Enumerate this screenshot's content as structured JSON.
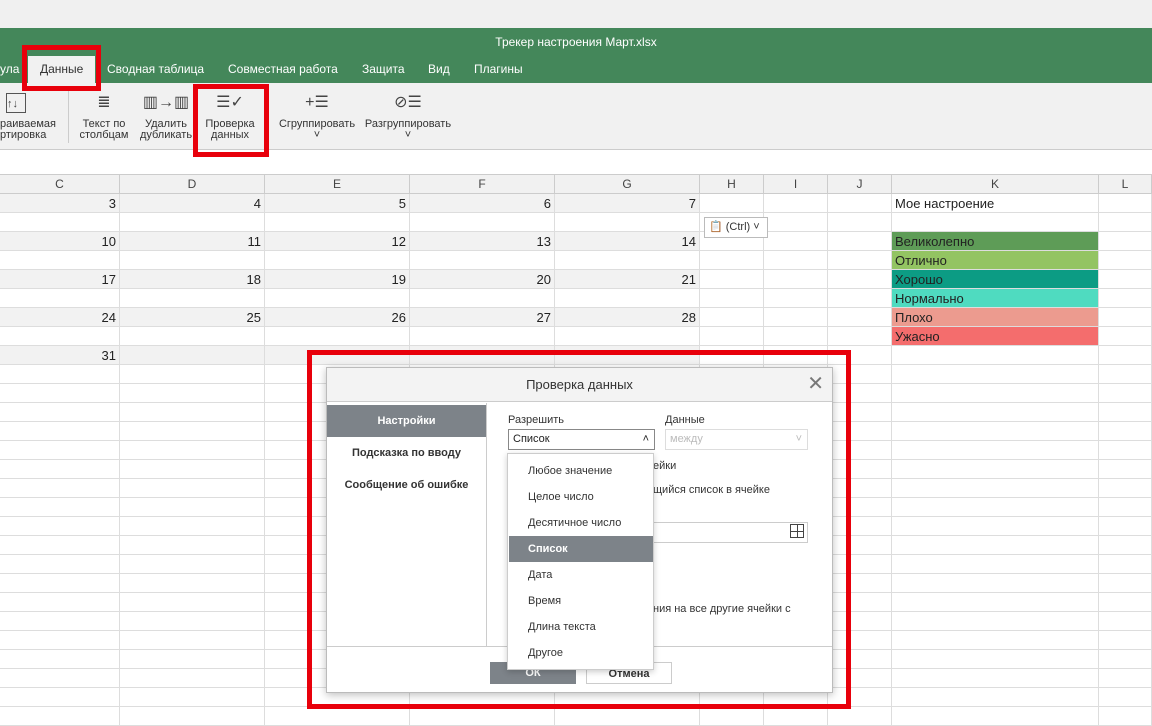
{
  "window": {
    "title": "Трекер настроения Март.xlsx"
  },
  "tabs": [
    {
      "label": "ула"
    },
    {
      "label": "Данные"
    },
    {
      "label": "Сводная таблица"
    },
    {
      "label": "Совместная работа"
    },
    {
      "label": "Защита"
    },
    {
      "label": "Вид"
    },
    {
      "label": "Плагины"
    }
  ],
  "toolbar": {
    "custom_sort": {
      "line1": "раиваемая",
      "line2": "ртировка",
      "icon": "sort-icon"
    },
    "text_to_columns": {
      "line1": "Текст по",
      "line2": "столбцам",
      "icon": "text-to-columns-icon"
    },
    "remove_duplicates": {
      "line1": "Удалить",
      "line2": "дубликать",
      "icon": "remove-duplicates-icon"
    },
    "data_validation": {
      "line1": "Проверка",
      "line2": "данных",
      "icon": "data-validation-icon"
    },
    "group": {
      "line1": "Сгруппировать",
      "arrow": "˅",
      "icon": "group-icon"
    },
    "ungroup": {
      "line1": "Разгруппировать",
      "arrow": "˅",
      "icon": "ungroup-icon"
    }
  },
  "columns": [
    "C",
    "D",
    "E",
    "F",
    "G",
    "H",
    "I",
    "J",
    "K",
    "L"
  ],
  "grid": {
    "rows": [
      {
        "values": [
          "3",
          "4",
          "5",
          "6",
          "7"
        ]
      },
      {
        "values": [
          "10",
          "11",
          "12",
          "13",
          "14"
        ]
      },
      {
        "values": [
          "17",
          "18",
          "19",
          "20",
          "21"
        ]
      },
      {
        "values": [
          "24",
          "25",
          "26",
          "27",
          "28"
        ]
      },
      {
        "values": [
          "31"
        ]
      }
    ],
    "mood_header": "Мое настроение",
    "moods": [
      {
        "label": "Великолепно",
        "color": "#5e9c57"
      },
      {
        "label": "Отлично",
        "color": "#93c462"
      },
      {
        "label": "Хорошо",
        "color": "#0c9c84"
      },
      {
        "label": "Нормально",
        "color": "#4fdbc0"
      },
      {
        "label": "Плохо",
        "color": "#ec9b8f"
      },
      {
        "label": "Ужасно",
        "color": "#f46d6d"
      }
    ],
    "paste_options": "(Ctrl) ˅"
  },
  "dialog": {
    "title": "Проверка данных",
    "close": "✕",
    "nav": [
      {
        "label": "Настройки"
      },
      {
        "label": "Подсказка по вводу"
      },
      {
        "label": "Сообщение об ошибке"
      }
    ],
    "allow_label": "Разрешить",
    "allow_value": "Список",
    "data_label": "Данные",
    "data_value": "между",
    "partial_texts": [
      "ейки",
      "щийся список в ячейке",
      "ния на все другие ячейки с"
    ],
    "options": [
      "Любое значение",
      "Целое число",
      "Десятичное число",
      "Список",
      "Дата",
      "Время",
      "Длина текста",
      "Другое"
    ],
    "selected_option": "Список",
    "ok": "ОК",
    "cancel": "Отмена"
  }
}
